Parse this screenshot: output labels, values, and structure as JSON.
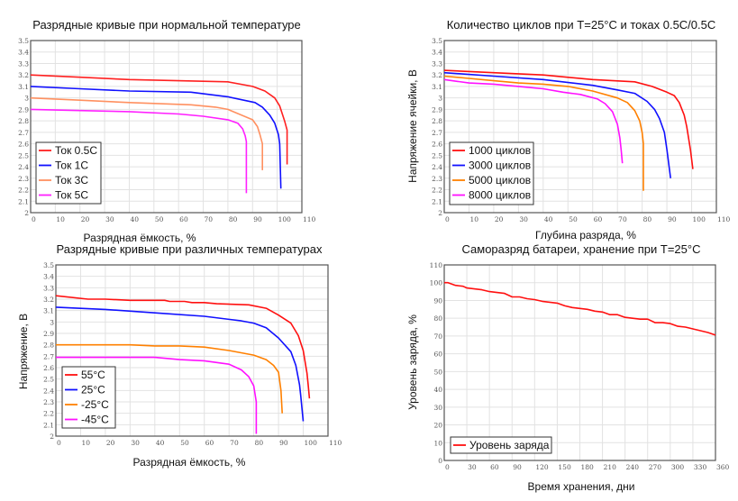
{
  "chart_data": [
    {
      "type": "line",
      "title": "Разрядные кривые при нормальной температуре",
      "xlabel": "Разрядная ёмкость, %",
      "ylabel": "",
      "xlim": [
        0,
        110
      ],
      "ylim": [
        2,
        3.5
      ],
      "xticks": [
        "0",
        "10",
        "20",
        "30",
        "40",
        "50",
        "60",
        "70",
        "80",
        "90",
        "100",
        "110"
      ],
      "yticks": [
        "2",
        "2.1",
        "2.2",
        "2.3",
        "2.4",
        "2.5",
        "2.6",
        "2.7",
        "2.8",
        "2.9",
        "3",
        "3.1",
        "3.2",
        "3.3",
        "3.4",
        "3.5"
      ],
      "grid": true,
      "legend": "bottom-left",
      "series": [
        {
          "name": "Ток 0.5С",
          "color": "#ff2020",
          "points": [
            [
              0,
              3.2
            ],
            [
              20,
              3.18
            ],
            [
              40,
              3.16
            ],
            [
              60,
              3.15
            ],
            [
              80,
              3.14
            ],
            [
              90,
              3.1
            ],
            [
              95,
              3.06
            ],
            [
              99,
              3.0
            ],
            [
              101,
              2.93
            ],
            [
              103,
              2.8
            ],
            [
              104,
              2.72
            ],
            [
              104,
              2.42
            ]
          ]
        },
        {
          "name": "Ток 1С",
          "color": "#1010ff",
          "points": [
            [
              0,
              3.1
            ],
            [
              20,
              3.08
            ],
            [
              40,
              3.06
            ],
            [
              65,
              3.05
            ],
            [
              80,
              3.01
            ],
            [
              91,
              2.96
            ],
            [
              94,
              2.92
            ],
            [
              97,
              2.85
            ],
            [
              99,
              2.78
            ],
            [
              100.5,
              2.68
            ],
            [
              101,
              2.6
            ],
            [
              101.5,
              2.21
            ]
          ]
        },
        {
          "name": "Ток 3С",
          "color": "#ff9060",
          "points": [
            [
              0,
              3.0
            ],
            [
              20,
              2.98
            ],
            [
              40,
              2.96
            ],
            [
              65,
              2.94
            ],
            [
              75,
              2.92
            ],
            [
              80,
              2.9
            ],
            [
              90,
              2.81
            ],
            [
              92,
              2.75
            ],
            [
              93,
              2.68
            ],
            [
              94,
              2.6
            ],
            [
              94,
              2.37
            ]
          ]
        },
        {
          "name": "Ток 5С",
          "color": "#ff20ff",
          "points": [
            [
              0,
              2.9
            ],
            [
              20,
              2.89
            ],
            [
              40,
              2.88
            ],
            [
              60,
              2.86
            ],
            [
              70,
              2.84
            ],
            [
              80,
              2.81
            ],
            [
              84,
              2.78
            ],
            [
              86,
              2.73
            ],
            [
              87,
              2.67
            ],
            [
              87.5,
              2.62
            ],
            [
              87.5,
              2.17
            ]
          ]
        }
      ]
    },
    {
      "type": "line",
      "title": "Количество циклов при T=25°С и токах 0.5С/0.5С",
      "xlabel": "Глубина разряда, %",
      "ylabel": "Напряжение ячейки, В",
      "xlim": [
        0,
        110
      ],
      "ylim": [
        2,
        3.5
      ],
      "xticks": [
        "0",
        "10",
        "20",
        "30",
        "40",
        "50",
        "60",
        "70",
        "80",
        "90",
        "100",
        "110"
      ],
      "yticks": [
        "2",
        "2.1",
        "2.2",
        "2.3",
        "2.4",
        "2.5",
        "2.6",
        "2.7",
        "2.8",
        "2.9",
        "3",
        "3.1",
        "3.2",
        "3.3",
        "3.4",
        "3.5"
      ],
      "grid": true,
      "legend": "bottom-left",
      "series": [
        {
          "name": "1000 циклов",
          "color": "#ff1010",
          "points": [
            [
              0,
              3.24
            ],
            [
              20,
              3.22
            ],
            [
              40,
              3.2
            ],
            [
              60,
              3.16
            ],
            [
              77,
              3.14
            ],
            [
              84,
              3.1
            ],
            [
              90,
              3.05
            ],
            [
              93,
              3.02
            ],
            [
              95,
              2.96
            ],
            [
              97,
              2.85
            ],
            [
              98,
              2.75
            ],
            [
              99.5,
              2.55
            ],
            [
              100.5,
              2.38
            ]
          ]
        },
        {
          "name": "3000 циклов",
          "color": "#1010ff",
          "points": [
            [
              0,
              3.22
            ],
            [
              20,
              3.19
            ],
            [
              40,
              3.16
            ],
            [
              60,
              3.11
            ],
            [
              70,
              3.07
            ],
            [
              77,
              3.04
            ],
            [
              82,
              2.97
            ],
            [
              85,
              2.9
            ],
            [
              87,
              2.82
            ],
            [
              89,
              2.7
            ],
            [
              90,
              2.55
            ],
            [
              91.5,
              2.3
            ]
          ]
        },
        {
          "name": "5000 циклов",
          "color": "#ff8000",
          "points": [
            [
              0,
              3.19
            ],
            [
              10,
              3.17
            ],
            [
              20,
              3.15
            ],
            [
              30,
              3.13
            ],
            [
              40,
              3.12
            ],
            [
              50,
              3.1
            ],
            [
              60,
              3.06
            ],
            [
              70,
              3.0
            ],
            [
              74,
              2.96
            ],
            [
              77,
              2.89
            ],
            [
              79,
              2.8
            ],
            [
              80,
              2.7
            ],
            [
              80.5,
              2.6
            ],
            [
              80.5,
              2.19
            ]
          ]
        },
        {
          "name": "8000 циклов",
          "color": "#ff10ff",
          "points": [
            [
              0,
              3.16
            ],
            [
              10,
              3.13
            ],
            [
              20,
              3.12
            ],
            [
              30,
              3.1
            ],
            [
              40,
              3.08
            ],
            [
              48,
              3.05
            ],
            [
              55,
              3.03
            ],
            [
              62,
              2.99
            ],
            [
              65,
              2.95
            ],
            [
              68,
              2.88
            ],
            [
              70,
              2.77
            ],
            [
              71,
              2.65
            ],
            [
              71.5,
              2.55
            ],
            [
              72,
              2.43
            ]
          ]
        }
      ]
    },
    {
      "type": "line",
      "title": "Разрядные кривые при различных температурах",
      "xlabel": "Разрядная ёмкость, %",
      "ylabel": "Напряжение, В",
      "xlim": [
        0,
        110
      ],
      "ylim": [
        2,
        3.5
      ],
      "xticks": [
        "0",
        "10",
        "20",
        "30",
        "40",
        "50",
        "60",
        "70",
        "80",
        "90",
        "100",
        "110"
      ],
      "yticks": [
        "2",
        "2.1",
        "2.2",
        "2.3",
        "2.4",
        "2.5",
        "2.6",
        "2.7",
        "2.8",
        "2.9",
        "3",
        "3.1",
        "3.2",
        "3.3",
        "3.4",
        "3.5"
      ],
      "grid": true,
      "legend": "bottom-left",
      "series": [
        {
          "name": "55°C",
          "color": "#ff1010",
          "points": [
            [
              0,
              3.23
            ],
            [
              13,
              3.2
            ],
            [
              20,
              3.2
            ],
            [
              30,
              3.19
            ],
            [
              44,
              3.19
            ],
            [
              46,
              3.18
            ],
            [
              52,
              3.18
            ],
            [
              55,
              3.17
            ],
            [
              60,
              3.17
            ],
            [
              65,
              3.16
            ],
            [
              78,
              3.15
            ],
            [
              85,
              3.12
            ],
            [
              90,
              3.06
            ],
            [
              95,
              2.99
            ],
            [
              98,
              2.88
            ],
            [
              100,
              2.75
            ],
            [
              101.5,
              2.55
            ],
            [
              102,
              2.45
            ],
            [
              102.5,
              2.33
            ]
          ]
        },
        {
          "name": "25°C",
          "color": "#1010ff",
          "points": [
            [
              0,
              3.13
            ],
            [
              20,
              3.11
            ],
            [
              40,
              3.08
            ],
            [
              60,
              3.05
            ],
            [
              75,
              3.01
            ],
            [
              80,
              2.99
            ],
            [
              85,
              2.95
            ],
            [
              90,
              2.86
            ],
            [
              95,
              2.74
            ],
            [
              97,
              2.62
            ],
            [
              98.5,
              2.45
            ],
            [
              99,
              2.35
            ],
            [
              100,
              2.13
            ]
          ]
        },
        {
          "name": "-25°C",
          "color": "#ff8000",
          "points": [
            [
              0,
              2.8
            ],
            [
              30,
              2.8
            ],
            [
              40,
              2.79
            ],
            [
              50,
              2.79
            ],
            [
              60,
              2.78
            ],
            [
              70,
              2.75
            ],
            [
              80,
              2.71
            ],
            [
              85,
              2.67
            ],
            [
              88,
              2.62
            ],
            [
              90,
              2.56
            ],
            [
              91,
              2.4
            ],
            [
              91.5,
              2.2
            ]
          ]
        },
        {
          "name": "-45°C",
          "color": "#ff10ff",
          "points": [
            [
              0,
              2.69
            ],
            [
              40,
              2.69
            ],
            [
              50,
              2.67
            ],
            [
              60,
              2.66
            ],
            [
              70,
              2.63
            ],
            [
              75,
              2.58
            ],
            [
              78,
              2.52
            ],
            [
              80,
              2.44
            ],
            [
              81,
              2.3
            ],
            [
              81,
              2.02
            ]
          ]
        }
      ]
    },
    {
      "type": "line",
      "title": "Саморазряд батареи, хранение при T=25°С",
      "xlabel": "Время хранения, дни",
      "ylabel": "Уровень заряда, %",
      "xlim": [
        0,
        360
      ],
      "ylim": [
        0,
        110
      ],
      "xticks": [
        "0",
        "30",
        "60",
        "90",
        "120",
        "150",
        "180",
        "210",
        "240",
        "270",
        "300",
        "330",
        "360"
      ],
      "yticks": [
        "0",
        "10",
        "20",
        "30",
        "40",
        "50",
        "60",
        "70",
        "80",
        "90",
        "100",
        "110"
      ],
      "grid": true,
      "legend": "bottom-left",
      "series": [
        {
          "name": "Уровень заряда",
          "color": "#ff1010",
          "points": [
            [
              0,
              100
            ],
            [
              5,
              100
            ],
            [
              15,
              98.5
            ],
            [
              25,
              98
            ],
            [
              30,
              97
            ],
            [
              40,
              96.5
            ],
            [
              50,
              96
            ],
            [
              60,
              95
            ],
            [
              70,
              94.5
            ],
            [
              80,
              94
            ],
            [
              90,
              92
            ],
            [
              100,
              92
            ],
            [
              110,
              91
            ],
            [
              120,
              90.5
            ],
            [
              130,
              89.5
            ],
            [
              140,
              89
            ],
            [
              150,
              88.5
            ],
            [
              160,
              87
            ],
            [
              170,
              86
            ],
            [
              180,
              85.5
            ],
            [
              190,
              85
            ],
            [
              200,
              84
            ],
            [
              210,
              83.5
            ],
            [
              220,
              82
            ],
            [
              230,
              82
            ],
            [
              240,
              80.5
            ],
            [
              250,
              80
            ],
            [
              260,
              79.5
            ],
            [
              270,
              79.5
            ],
            [
              280,
              77.5
            ],
            [
              290,
              77.5
            ],
            [
              300,
              77
            ],
            [
              310,
              75.5
            ],
            [
              320,
              75
            ],
            [
              330,
              74
            ],
            [
              340,
              73
            ],
            [
              350,
              72
            ],
            [
              360,
              70.5
            ]
          ]
        }
      ]
    }
  ]
}
